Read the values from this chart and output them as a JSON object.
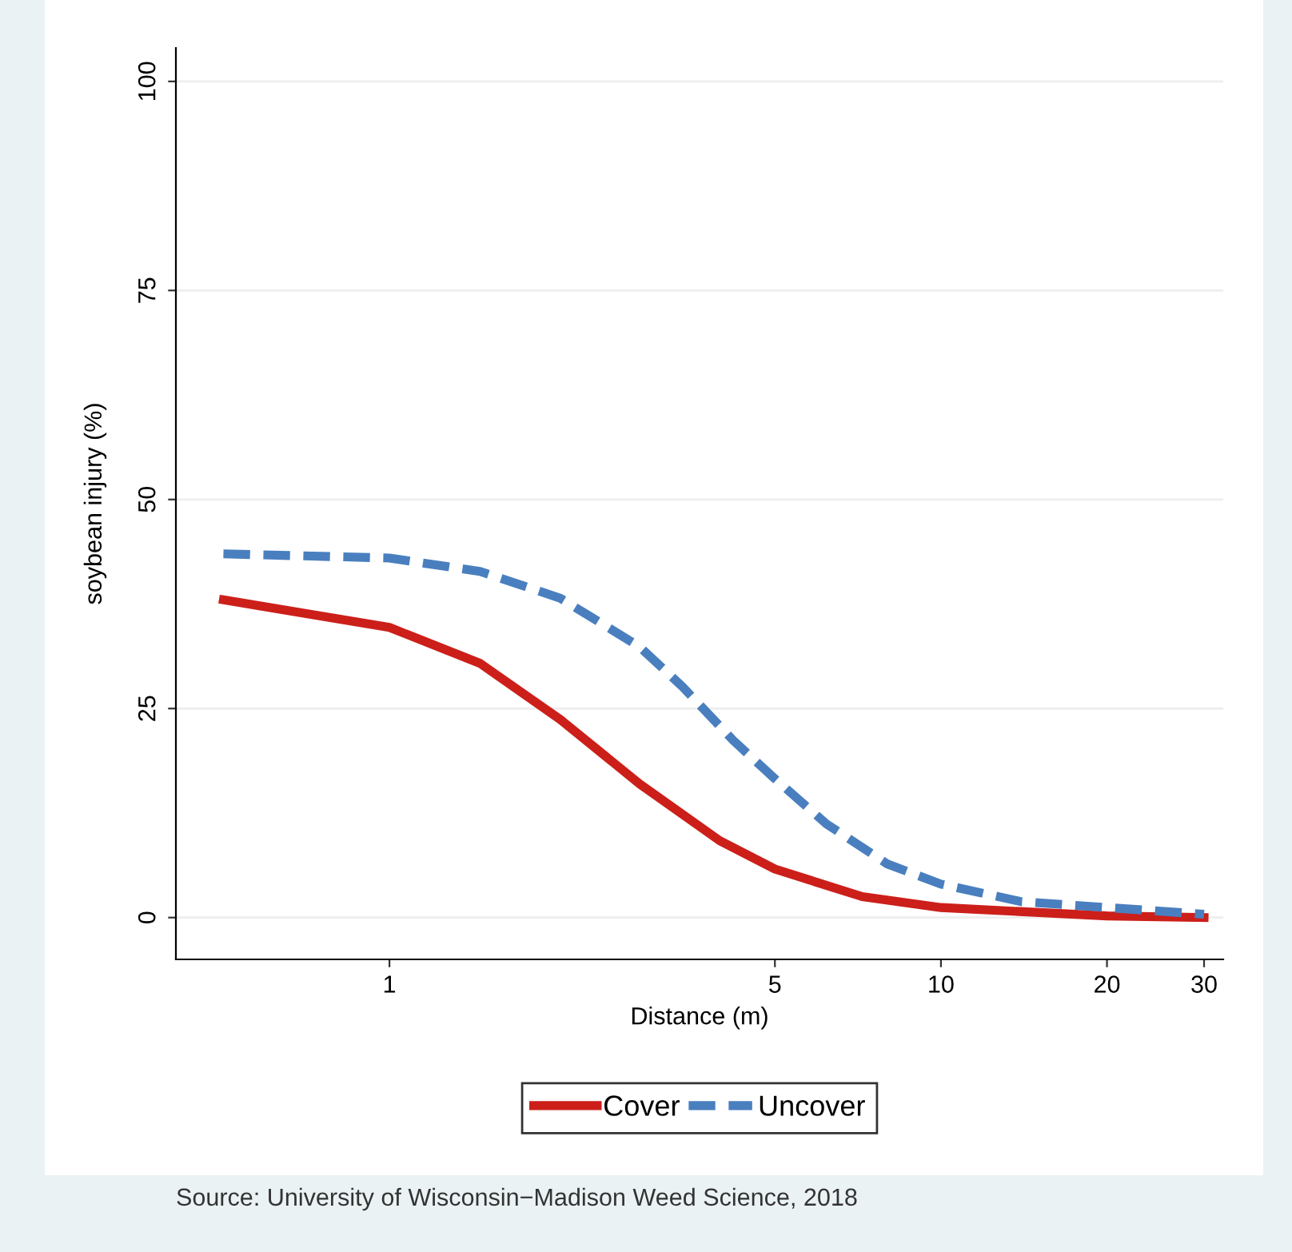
{
  "chart_data": {
    "type": "line",
    "xlabel": "Distance (m)",
    "ylabel": "soybean injury (%)",
    "annotations": [
      "Source: University of Wisconsin−Madison Weed Science, 2018"
    ],
    "log": "x",
    "xlim": [
      0.41,
      32.5
    ],
    "xticks": [
      1,
      5,
      10,
      20,
      30
    ],
    "ylim": [
      -5,
      104
    ],
    "yticks": [
      0,
      25,
      50,
      75,
      100
    ],
    "grid": "y",
    "legend": "bottom",
    "series": [
      {
        "name": "Cover",
        "color": "#cc1f1a",
        "line_style": "solid",
        "x": [
          0.5,
          1,
          1.46,
          2.04,
          2.84,
          3.97,
          5,
          7.2,
          10,
          20,
          30
        ],
        "values": [
          38.0,
          34.7,
          30.4,
          23.7,
          16.0,
          9.2,
          5.8,
          2.5,
          1.2,
          0.2,
          0
        ]
      },
      {
        "name": "Uncover",
        "color": "#4a7fbf",
        "line_style": "dashed",
        "x": [
          0.5,
          1,
          1.46,
          2.04,
          2.84,
          3.4,
          4.2,
          5,
          6.2,
          8,
          10,
          14,
          20,
          30
        ],
        "values": [
          43.5,
          43.0,
          41.4,
          38.2,
          32.4,
          27.6,
          21.2,
          16.6,
          11.2,
          6.4,
          4.0,
          1.9,
          1.2,
          0.4
        ]
      }
    ]
  }
}
